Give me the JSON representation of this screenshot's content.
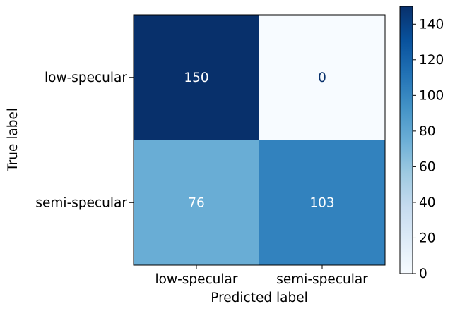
{
  "chart_data": {
    "type": "heatmap",
    "title": "",
    "xlabel": "Predicted label",
    "ylabel": "True label",
    "x_categories": [
      "low-specular",
      "semi-specular"
    ],
    "y_categories": [
      "low-specular",
      "semi-specular"
    ],
    "values": [
      [
        150,
        0
      ],
      [
        76,
        103
      ]
    ],
    "colormap": "Blues",
    "colorbar": {
      "range": [
        0,
        150
      ],
      "ticks": [
        0,
        20,
        40,
        60,
        80,
        100,
        120,
        140
      ]
    },
    "grid": false
  }
}
